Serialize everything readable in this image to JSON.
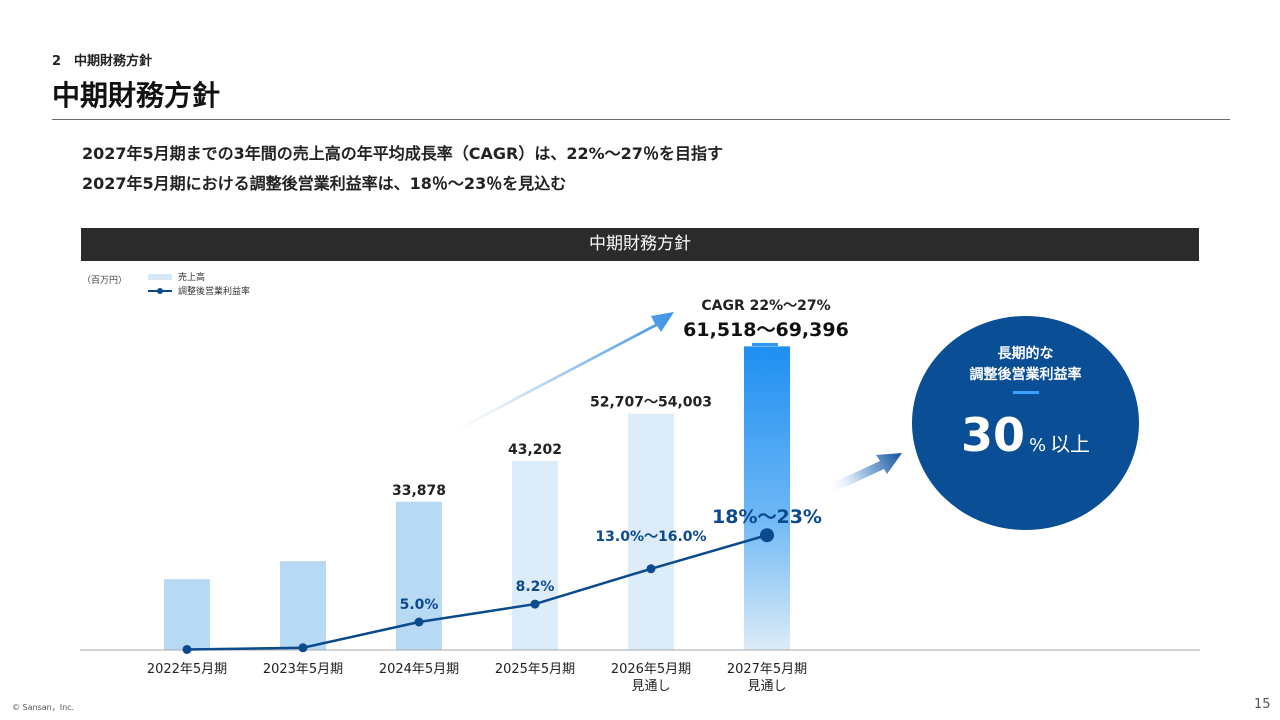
{
  "section_label": "2　中期財務方針",
  "page_title": "中期財務方針",
  "lead_lines": [
    "2027年5月期までの3年間の売上高の年平均成長率（CAGR）は、22%〜27％を目指す",
    "2027年5月期における調整後営業利益率は、18％〜23％を見込む"
  ],
  "banner_title": "中期財務方針",
  "unit_label": "（百万円）",
  "legend": {
    "sales": "売上高",
    "margin": "調整後営業利益率"
  },
  "chart_data": {
    "type": "bar",
    "categories": [
      [
        "2022年5月期"
      ],
      [
        "2023年5月期"
      ],
      [
        "2024年5月期"
      ],
      [
        "2025年5月期"
      ],
      [
        "2026年5月期",
        "見通し"
      ],
      [
        "2027年5月期",
        "見通し"
      ]
    ],
    "unit": "（百万円）",
    "series": [
      {
        "name": "売上高",
        "type": "bar",
        "values": [
          16200,
          20300,
          33878,
          43202,
          54003,
          69396
        ],
        "range_low": [
          null,
          null,
          null,
          null,
          52707,
          61518
        ],
        "labels": [
          "",
          "",
          "33,878",
          "43,202",
          "52,707〜54,003",
          "61,518〜69,396"
        ],
        "colors": [
          "#b8d9f3",
          "#b8d9f3",
          "#b8d9f3",
          "#dcecf8",
          "#dcecf8",
          "#2d95f3"
        ]
      },
      {
        "name": "調整後営業利益率",
        "type": "line",
        "unit": "%",
        "values": [
          0.1,
          0.4,
          5.0,
          8.2,
          14.5,
          20.5
        ],
        "labels": [
          "",
          "",
          "5.0%",
          "8.2%",
          "13.0%〜16.0%",
          "18%〜23%"
        ],
        "color": "#0b4a8c"
      }
    ],
    "annotations": {
      "cagr": "CAGR 22%〜27%",
      "target_range": "61,518〜69,396"
    },
    "ylim": [
      0,
      80000
    ]
  },
  "long_term": {
    "line1": "長期的な",
    "line2": "調整後営業利益率",
    "value": "30",
    "unit": "%",
    "suffix": "以上"
  },
  "copyright": "© Sansan，Inc.",
  "page_number": "15"
}
